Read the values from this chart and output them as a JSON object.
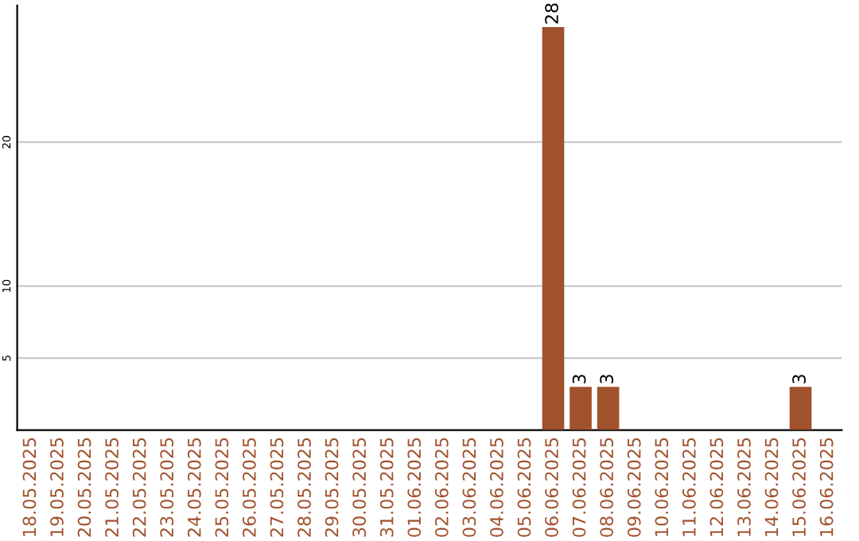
{
  "chart_data": {
    "type": "bar",
    "categories": [
      "18.05.2025",
      "19.05.2025",
      "20.05.2025",
      "21.05.2025",
      "22.05.2025",
      "23.05.2025",
      "24.05.2025",
      "25.05.2025",
      "26.05.2025",
      "27.05.2025",
      "28.05.2025",
      "29.05.2025",
      "30.05.2025",
      "31.05.2025",
      "01.06.2025",
      "02.06.2025",
      "03.06.2025",
      "04.06.2025",
      "05.06.2025",
      "06.06.2025",
      "07.06.2025",
      "08.06.2025",
      "09.06.2025",
      "10.06.2025",
      "11.06.2025",
      "12.06.2025",
      "13.06.2025",
      "14.06.2025",
      "15.06.2025",
      "16.06.2025"
    ],
    "values": [
      0,
      0,
      0,
      0,
      0,
      0,
      0,
      0,
      0,
      0,
      0,
      0,
      0,
      0,
      0,
      0,
      0,
      0,
      0,
      28,
      3,
      3,
      0,
      0,
      0,
      0,
      0,
      0,
      3,
      0
    ],
    "value_labels": [
      null,
      null,
      null,
      null,
      null,
      null,
      null,
      null,
      null,
      null,
      null,
      null,
      null,
      null,
      null,
      null,
      null,
      null,
      null,
      "28",
      "3",
      "3",
      null,
      null,
      null,
      null,
      null,
      null,
      "3",
      null
    ],
    "color": "#a0522d",
    "ylim": [
      0,
      29.5
    ],
    "yticks": [
      5,
      10,
      20
    ],
    "grid": "y",
    "legend": false
  }
}
